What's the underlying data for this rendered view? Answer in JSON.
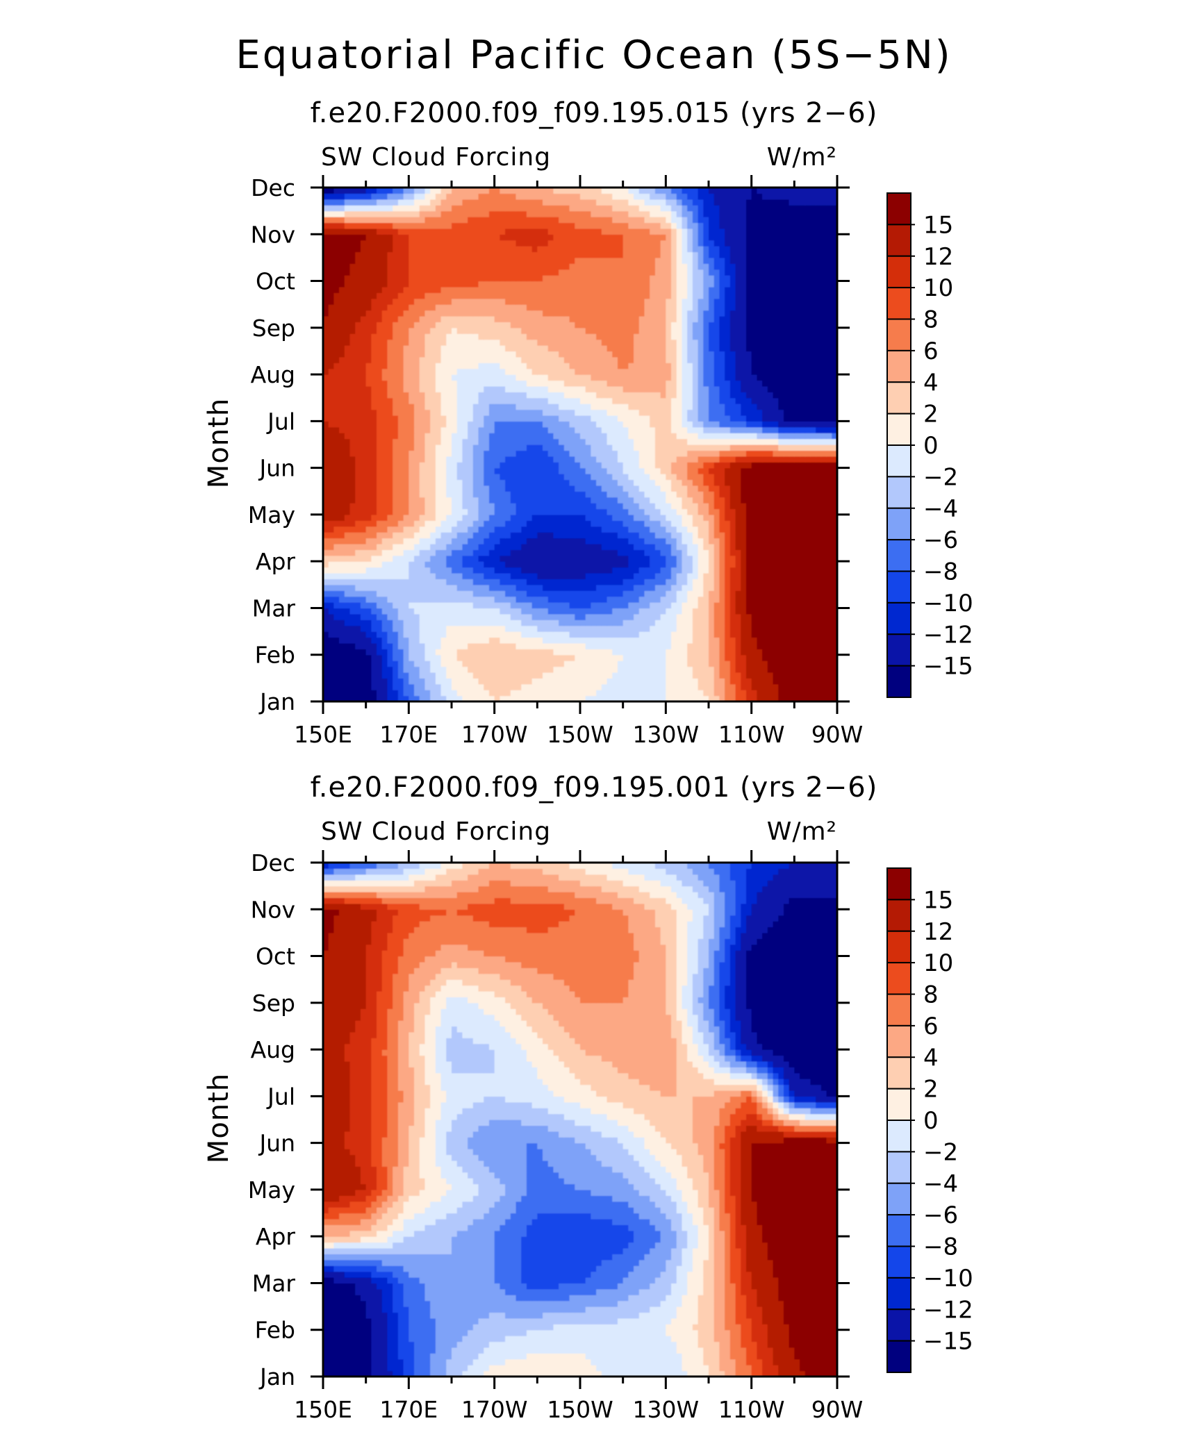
{
  "figure": {
    "title": "Equatorial Pacific Ocean (5S−5N)"
  },
  "chart_data": [
    {
      "type": "heatmap",
      "title": "f.e20.F2000.f09_f09.195.015 (yrs 2−6)",
      "left_label": "SW Cloud Forcing",
      "right_label": "W/m²",
      "ylabel": "Month",
      "xlabel": "",
      "x_ticks": [
        "150E",
        "170E",
        "170W",
        "150W",
        "130W",
        "110W",
        "90W"
      ],
      "x_range_lon": [
        150,
        270
      ],
      "y_ticks": [
        "Jan",
        "Feb",
        "Mar",
        "Apr",
        "May",
        "Jun",
        "Jul",
        "Aug",
        "Sep",
        "Oct",
        "Nov",
        "Dec"
      ],
      "levels": [
        -15,
        -12,
        -10,
        -8,
        -6,
        -4,
        -2,
        0,
        2,
        4,
        6,
        8,
        10,
        12,
        15
      ],
      "level_labels": [
        "15",
        "12",
        "10",
        "8",
        "6",
        "4",
        "2",
        "0",
        "−2",
        "−4",
        "−6",
        "−8",
        "−10",
        "−12",
        "−15"
      ],
      "colors": [
        "#00007f",
        "#0a14a8",
        "#0028d0",
        "#1446ea",
        "#3c6ef2",
        "#7ea2f8",
        "#b2c8fc",
        "#dceafe",
        "#fef0e2",
        "#fecfb2",
        "#fca884",
        "#f67c4c",
        "#ec4c1e",
        "#d42e0a",
        "#b41a04",
        "#8c0000"
      ],
      "lon": [
        150,
        160,
        170,
        180,
        190,
        200,
        210,
        220,
        230,
        240,
        250,
        260,
        270
      ],
      "months": [
        "Jan",
        "Feb",
        "Mar",
        "Apr",
        "May",
        "Jun",
        "Jul",
        "Aug",
        "Sep",
        "Oct",
        "Nov",
        "Dec"
      ],
      "values": [
        [
          -18,
          -17,
          -8,
          -1,
          2,
          1,
          0,
          -1,
          0,
          2,
          11,
          17,
          19
        ],
        [
          -18,
          -16,
          -4,
          2,
          4,
          3,
          2,
          0,
          0,
          4,
          14,
          18,
          19
        ],
        [
          -12,
          -8,
          -2,
          -1,
          -2,
          -6,
          -8,
          -6,
          -2,
          4,
          16,
          19,
          19
        ],
        [
          3,
          2,
          -2,
          -7,
          -12,
          -15,
          -14,
          -13,
          -9,
          2,
          16,
          19,
          19
        ],
        [
          14,
          11,
          6,
          0,
          -6,
          -10,
          -10,
          -7,
          -2,
          5,
          17,
          19,
          19
        ],
        [
          15,
          11,
          6,
          -1,
          -8,
          -10,
          -6,
          -2,
          3,
          10,
          17,
          18,
          18
        ],
        [
          12,
          11,
          7,
          1,
          -6,
          -6,
          -3,
          0,
          3,
          -6,
          -10,
          -16,
          -17
        ],
        [
          12,
          10,
          5,
          0,
          -1,
          2,
          4,
          6,
          5,
          -7,
          -15,
          -18,
          -18
        ],
        [
          15,
          11,
          6,
          2,
          3,
          5,
          6,
          7,
          4,
          -8,
          -16,
          -18,
          -18
        ],
        [
          16,
          14,
          10,
          9,
          8,
          8,
          7,
          8,
          5,
          -5,
          -16,
          -18,
          -18
        ],
        [
          17,
          15,
          10,
          9,
          10,
          11,
          9,
          8,
          6,
          -10,
          -16,
          -17,
          -17
        ],
        [
          -18,
          -14,
          -6,
          4,
          6,
          4,
          3,
          0,
          -6,
          -12,
          -15,
          -14,
          -14
        ]
      ]
    },
    {
      "type": "heatmap",
      "title": "f.e20.F2000.f09_f09.195.001 (yrs 2−6)",
      "left_label": "SW Cloud Forcing",
      "right_label": "W/m²",
      "ylabel": "Month",
      "xlabel": "",
      "x_ticks": [
        "150E",
        "170E",
        "170W",
        "150W",
        "130W",
        "110W",
        "90W"
      ],
      "x_range_lon": [
        150,
        270
      ],
      "y_ticks": [
        "Jan",
        "Feb",
        "Mar",
        "Apr",
        "May",
        "Jun",
        "Jul",
        "Aug",
        "Sep",
        "Oct",
        "Nov",
        "Dec"
      ],
      "levels": [
        -15,
        -12,
        -10,
        -8,
        -6,
        -4,
        -2,
        0,
        2,
        4,
        6,
        8,
        10,
        12,
        15
      ],
      "level_labels": [
        "15",
        "12",
        "10",
        "8",
        "6",
        "4",
        "2",
        "0",
        "−2",
        "−4",
        "−6",
        "−8",
        "−10",
        "−12",
        "−15"
      ],
      "colors": [
        "#00007f",
        "#0a14a8",
        "#0028d0",
        "#1446ea",
        "#3c6ef2",
        "#7ea2f8",
        "#b2c8fc",
        "#dceafe",
        "#fef0e2",
        "#fecfb2",
        "#fca884",
        "#f67c4c",
        "#ec4c1e",
        "#d42e0a",
        "#b41a04",
        "#8c0000"
      ],
      "lon": [
        150,
        160,
        170,
        180,
        190,
        200,
        210,
        220,
        230,
        240,
        250,
        260,
        270
      ],
      "months": [
        "Jan",
        "Feb",
        "Mar",
        "Apr",
        "May",
        "Jun",
        "Jul",
        "Aug",
        "Sep",
        "Oct",
        "Nov",
        "Dec"
      ],
      "values": [
        [
          -18,
          -16,
          -9,
          -3,
          1,
          2,
          1,
          -1,
          -2,
          2,
          8,
          14,
          18
        ],
        [
          -18,
          -16,
          -8,
          -5,
          -3,
          -2,
          -1,
          -1,
          0,
          3,
          10,
          16,
          18
        ],
        [
          -17,
          -14,
          -7,
          -4,
          -6,
          -9,
          -8,
          -6,
          -3,
          3,
          12,
          17,
          18
        ],
        [
          4,
          3,
          -2,
          -4,
          -6,
          -9,
          -10,
          -9,
          -6,
          2,
          14,
          18,
          18
        ],
        [
          15,
          12,
          3,
          0,
          -3,
          -7,
          -6,
          -5,
          -2,
          4,
          15,
          18,
          18
        ],
        [
          13,
          11,
          4,
          -3,
          -6,
          -6,
          -4,
          -2,
          2,
          5,
          15,
          17,
          17
        ],
        [
          14,
          11,
          5,
          -1,
          -2,
          -1,
          1,
          3,
          4,
          4,
          8,
          -12,
          -16
        ],
        [
          13,
          11,
          4,
          -3,
          -2,
          1,
          4,
          5,
          6,
          -2,
          -14,
          -18,
          -18
        ],
        [
          14,
          12,
          5,
          -1,
          1,
          4,
          6,
          6,
          4,
          -6,
          -16,
          -18,
          -18
        ],
        [
          15,
          12,
          7,
          5,
          6,
          7,
          7,
          7,
          4,
          -4,
          -16,
          -18,
          -18
        ],
        [
          16,
          13,
          9,
          8,
          9,
          9,
          8,
          6,
          3,
          -2,
          -12,
          -16,
          -16
        ],
        [
          -12,
          -8,
          -4,
          1,
          4,
          3,
          1,
          -1,
          -3,
          -6,
          -10,
          -12,
          -12
        ]
      ]
    }
  ]
}
